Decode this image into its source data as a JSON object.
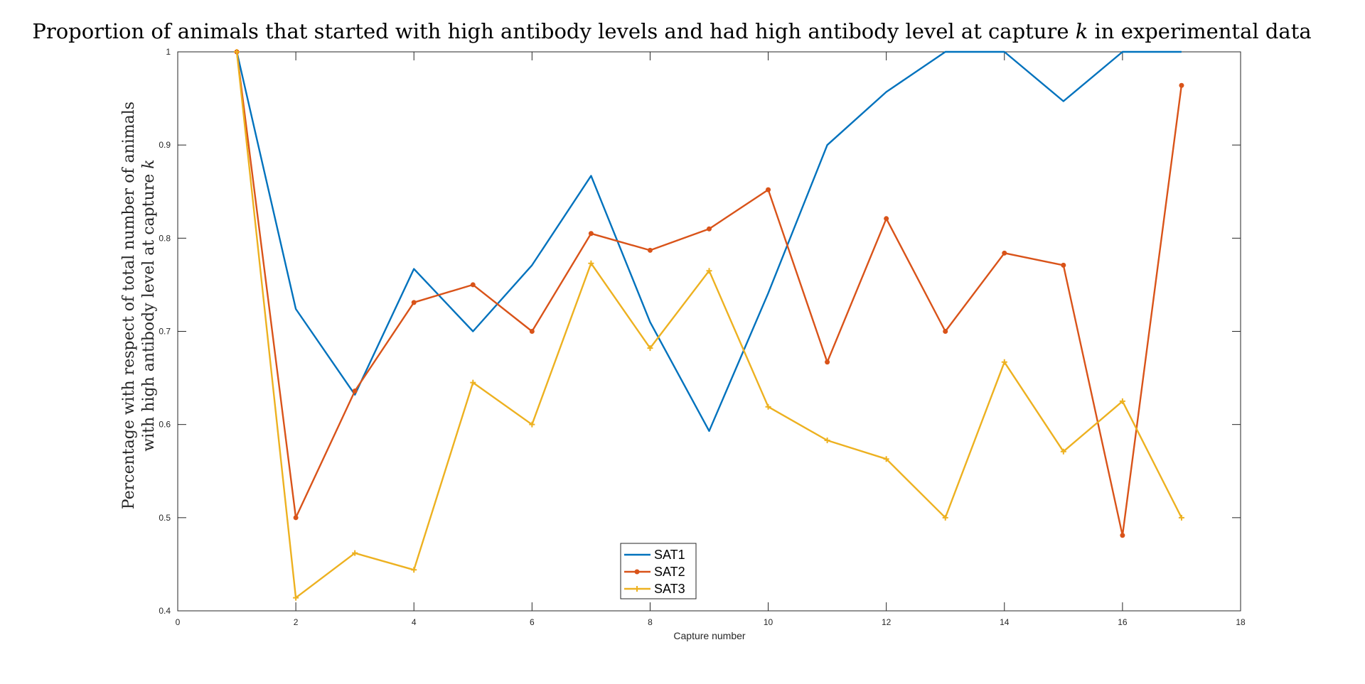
{
  "chart_data": {
    "type": "line",
    "title_parts": [
      "Proportion of animals that started with high antibody levels and had high antibody level at capture ",
      "k",
      " in experimental data"
    ],
    "xlabel": "Capture number",
    "ylabel_lines": [
      [
        "Percentage with respect of total number of animals"
      ],
      [
        "with high antibody level at capture ",
        "k"
      ]
    ],
    "xlim": [
      0,
      18
    ],
    "ylim": [
      0.4,
      1
    ],
    "xticks": [
      0,
      2,
      4,
      6,
      8,
      10,
      12,
      14,
      16,
      18
    ],
    "yticks": [
      0.4,
      0.5,
      0.6,
      0.7,
      0.8,
      0.9,
      1
    ],
    "ytick_labels": [
      "0.4",
      "0.5",
      "0.6",
      "0.7",
      "0.8",
      "0.9",
      "1"
    ],
    "grid": false,
    "legend_position": "bottom-center",
    "x": [
      1,
      2,
      3,
      4,
      5,
      6,
      7,
      8,
      9,
      10,
      11,
      12,
      13,
      14,
      15,
      16,
      17
    ],
    "series": [
      {
        "name": "SAT1",
        "color": "#0072BD",
        "marker": "none",
        "values": [
          1.0,
          0.724,
          0.632,
          0.767,
          0.7,
          0.771,
          0.867,
          0.71,
          0.593,
          0.741,
          0.9,
          0.957,
          1.0,
          1.0,
          0.947,
          1.0,
          1.0
        ]
      },
      {
        "name": "SAT2",
        "color": "#D95319",
        "marker": "dot",
        "values": [
          1.0,
          0.5,
          0.636,
          0.731,
          0.75,
          0.7,
          0.805,
          0.787,
          0.81,
          0.852,
          0.667,
          0.821,
          0.7,
          0.784,
          0.771,
          0.481,
          0.964
        ]
      },
      {
        "name": "SAT3",
        "color": "#EDB120",
        "marker": "plus",
        "values": [
          1.0,
          0.414,
          0.462,
          0.444,
          0.645,
          0.6,
          0.773,
          0.682,
          0.765,
          0.619,
          0.583,
          0.563,
          0.5,
          0.667,
          0.571,
          0.625,
          0.5
        ]
      }
    ]
  }
}
